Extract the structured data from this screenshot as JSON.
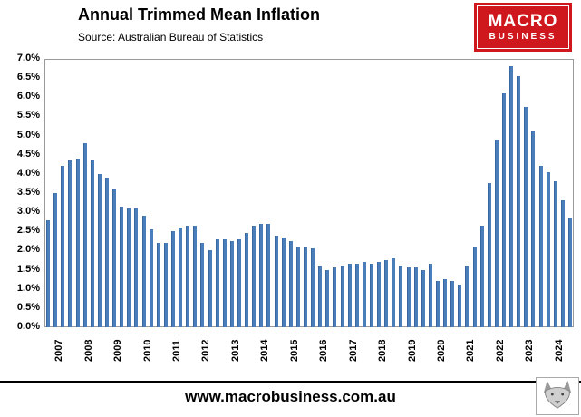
{
  "header": {
    "title": "Annual Trimmed Mean Inflation",
    "source": "Source: Australian Bureau of Statistics"
  },
  "logo": {
    "line1": "MACRO",
    "line2": "BUSINESS",
    "background_color": "#ce181e"
  },
  "footer": {
    "url": "www.macrobusiness.com.au"
  },
  "chart_data": {
    "type": "bar",
    "title": "Annual Trimmed Mean Inflation",
    "subtitle": "Source: Australian Bureau of Statistics",
    "bar_color": "#4a7ebb",
    "ylim": [
      0,
      7
    ],
    "ytick_step": 0.5,
    "yticks": [
      "0.0%",
      "0.5%",
      "1.0%",
      "1.5%",
      "2.0%",
      "2.5%",
      "3.0%",
      "3.5%",
      "4.0%",
      "4.5%",
      "5.0%",
      "5.5%",
      "6.0%",
      "6.5%",
      "7.0%"
    ],
    "years": [
      "2007",
      "2008",
      "2009",
      "2010",
      "2011",
      "2012",
      "2013",
      "2014",
      "2015",
      "2016",
      "2017",
      "2018",
      "2019",
      "2020",
      "2021",
      "2022",
      "2023",
      "2024"
    ],
    "series_note": "quarterly annual trimmed mean inflation, four bars per year",
    "values": [
      2.8,
      3.5,
      4.2,
      4.35,
      4.4,
      4.8,
      4.35,
      4.0,
      3.9,
      3.6,
      3.15,
      3.1,
      3.1,
      2.9,
      2.55,
      2.2,
      2.2,
      2.5,
      2.6,
      2.65,
      2.65,
      2.2,
      2.0,
      2.3,
      2.3,
      2.25,
      2.3,
      2.45,
      2.65,
      2.7,
      2.7,
      2.4,
      2.35,
      2.25,
      2.1,
      2.1,
      2.05,
      1.6,
      1.5,
      1.55,
      1.6,
      1.65,
      1.65,
      1.7,
      1.65,
      1.7,
      1.75,
      1.8,
      1.6,
      1.55,
      1.55,
      1.5,
      1.65,
      1.2,
      1.25,
      1.2,
      1.1,
      1.6,
      2.1,
      2.65,
      3.75,
      4.9,
      6.1,
      6.8,
      6.55,
      5.75,
      5.1,
      4.2,
      4.05,
      3.8,
      3.3,
      2.85
    ],
    "grid": false,
    "legend": "none"
  }
}
